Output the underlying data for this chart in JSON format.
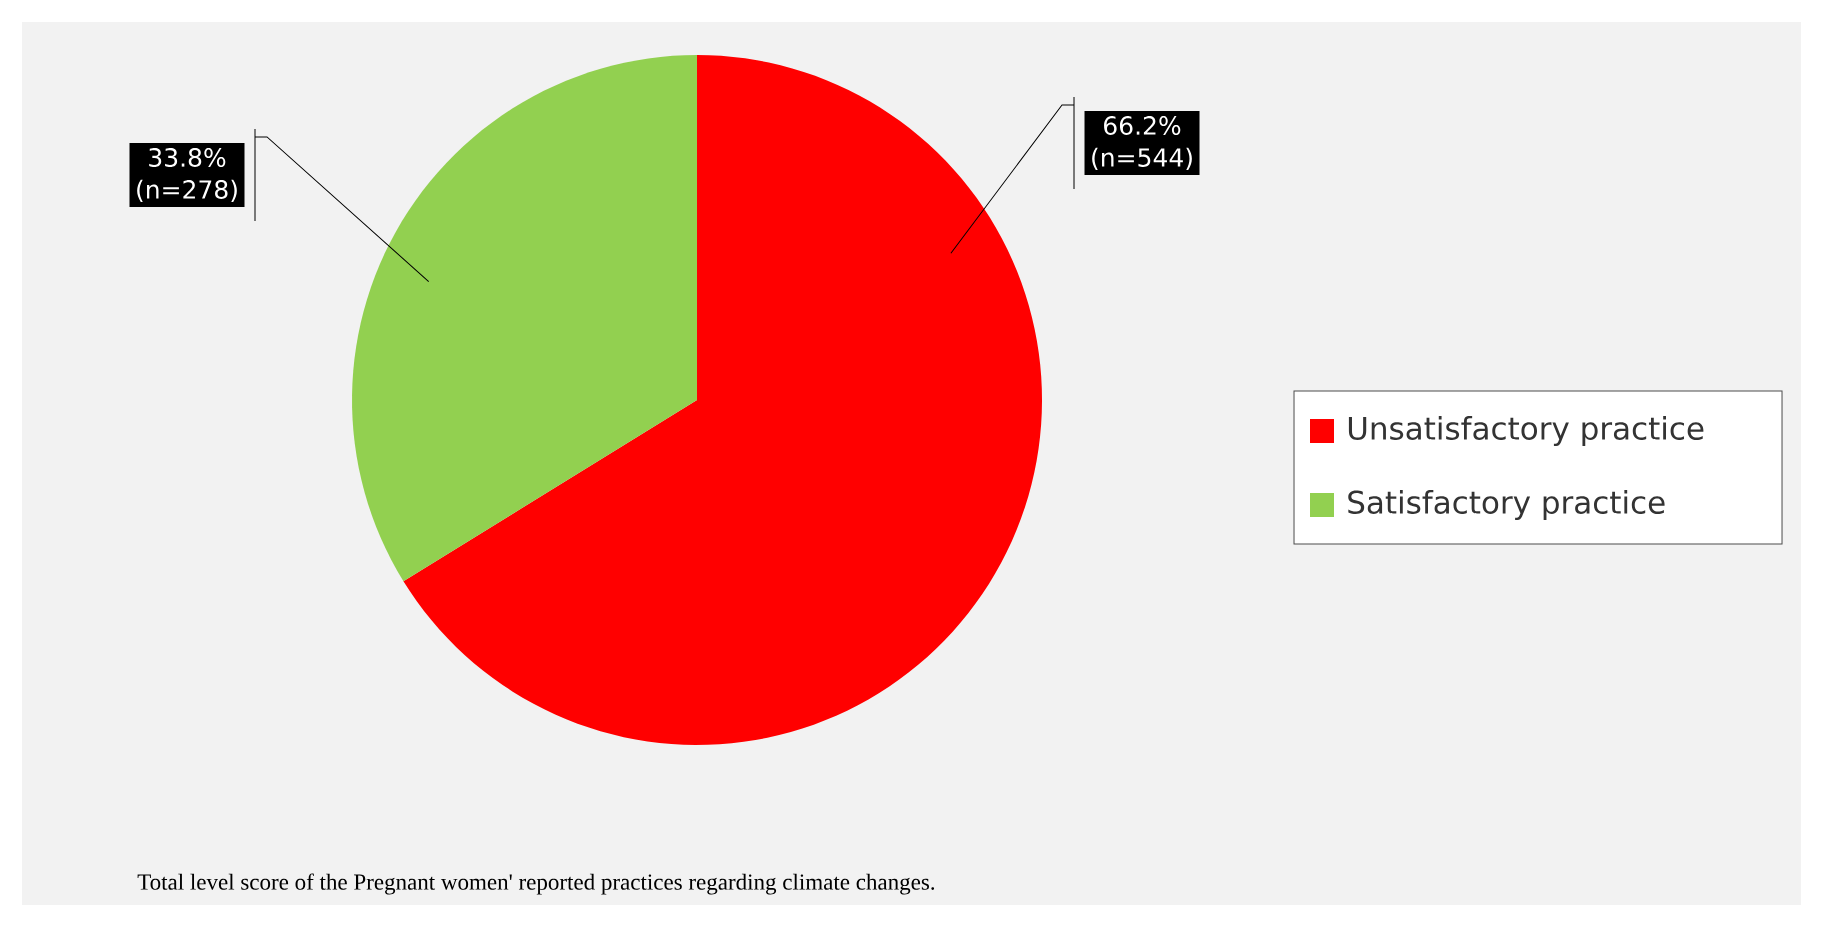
{
  "chart_data": {
    "type": "pie",
    "categories": [
      "Unsatisfactory practice",
      "Satisfactory practice"
    ],
    "values": [
      66.2,
      33.8
    ],
    "colors": [
      "#ff0000",
      "#92d050"
    ],
    "value_labels": [
      "66.2% (n=544)",
      "33.8% (n=278)"
    ],
    "legend": "right",
    "annotations": [
      "Total level score of the Pregnant women' reported practices regarding climate changes."
    ]
  }
}
